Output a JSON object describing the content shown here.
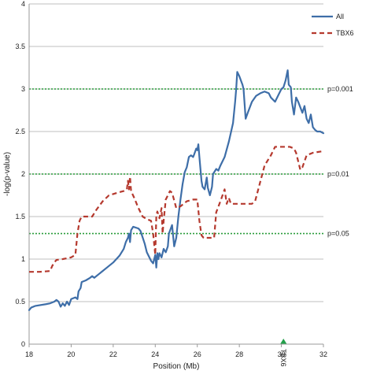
{
  "chart_data": {
    "type": "line",
    "xlabel": "Position (Mb)",
    "ylabel": "-log(p-value)",
    "xlim": [
      18,
      32
    ],
    "ylim": [
      0,
      4
    ],
    "xticks": [
      "18",
      "20",
      "22",
      "24",
      "26",
      "28",
      "30",
      "32"
    ],
    "yticks": [
      "0",
      "0.5",
      "1",
      "1.5",
      "2",
      "2.5",
      "3",
      "3.5",
      "4"
    ],
    "grid": true,
    "legend": "top-right",
    "colors": {
      "all": "#3e6ea8",
      "tbx6": "#b5392e",
      "threshold": "#2a9d3b",
      "marker": "#22a04a",
      "grid": "#bfbfbf"
    },
    "series": [
      {
        "name": "All",
        "style": "solid",
        "points": [
          [
            18.0,
            0.4
          ],
          [
            18.1,
            0.43
          ],
          [
            18.3,
            0.45
          ],
          [
            18.8,
            0.47
          ],
          [
            19.0,
            0.48
          ],
          [
            19.2,
            0.5
          ],
          [
            19.3,
            0.52
          ],
          [
            19.4,
            0.5
          ],
          [
            19.5,
            0.44
          ],
          [
            19.6,
            0.48
          ],
          [
            19.7,
            0.45
          ],
          [
            19.8,
            0.5
          ],
          [
            19.9,
            0.46
          ],
          [
            20.0,
            0.53
          ],
          [
            20.2,
            0.55
          ],
          [
            20.3,
            0.53
          ],
          [
            20.35,
            0.62
          ],
          [
            20.45,
            0.66
          ],
          [
            20.5,
            0.73
          ],
          [
            20.7,
            0.75
          ],
          [
            20.9,
            0.78
          ],
          [
            21.0,
            0.8
          ],
          [
            21.1,
            0.78
          ],
          [
            21.3,
            0.82
          ],
          [
            21.5,
            0.86
          ],
          [
            21.7,
            0.9
          ],
          [
            22.0,
            0.96
          ],
          [
            22.3,
            1.04
          ],
          [
            22.5,
            1.12
          ],
          [
            22.6,
            1.2
          ],
          [
            22.7,
            1.25
          ],
          [
            22.75,
            1.3
          ],
          [
            22.8,
            1.2
          ],
          [
            22.85,
            1.34
          ],
          [
            22.95,
            1.38
          ],
          [
            23.2,
            1.36
          ],
          [
            23.3,
            1.33
          ],
          [
            23.5,
            1.18
          ],
          [
            23.6,
            1.08
          ],
          [
            23.8,
            0.98
          ],
          [
            23.9,
            0.95
          ],
          [
            24.0,
            1.05
          ],
          [
            24.05,
            0.9
          ],
          [
            24.1,
            1.07
          ],
          [
            24.15,
            1.0
          ],
          [
            24.2,
            1.07
          ],
          [
            24.3,
            1.02
          ],
          [
            24.4,
            1.12
          ],
          [
            24.5,
            1.08
          ],
          [
            24.6,
            1.15
          ],
          [
            24.65,
            1.3
          ],
          [
            24.8,
            1.4
          ],
          [
            24.9,
            1.15
          ],
          [
            25.0,
            1.25
          ],
          [
            25.1,
            1.5
          ],
          [
            25.2,
            1.7
          ],
          [
            25.3,
            1.88
          ],
          [
            25.35,
            1.95
          ],
          [
            25.4,
            2.02
          ],
          [
            25.5,
            2.08
          ],
          [
            25.6,
            2.2
          ],
          [
            25.7,
            2.22
          ],
          [
            25.8,
            2.2
          ],
          [
            25.85,
            2.23
          ],
          [
            25.95,
            2.3
          ],
          [
            26.0,
            2.28
          ],
          [
            26.05,
            2.35
          ],
          [
            26.1,
            2.2
          ],
          [
            26.2,
            1.92
          ],
          [
            26.25,
            1.85
          ],
          [
            26.35,
            1.82
          ],
          [
            26.45,
            1.96
          ],
          [
            26.5,
            1.84
          ],
          [
            26.6,
            1.75
          ],
          [
            26.7,
            1.85
          ],
          [
            26.75,
            2.0
          ],
          [
            26.9,
            2.06
          ],
          [
            27.0,
            2.04
          ],
          [
            27.1,
            2.1
          ],
          [
            27.3,
            2.2
          ],
          [
            27.5,
            2.38
          ],
          [
            27.7,
            2.6
          ],
          [
            27.8,
            2.85
          ],
          [
            27.85,
            3.0
          ],
          [
            27.9,
            3.2
          ],
          [
            28.0,
            3.15
          ],
          [
            28.15,
            3.05
          ],
          [
            28.2,
            3.0
          ],
          [
            28.3,
            2.65
          ],
          [
            28.4,
            2.72
          ],
          [
            28.6,
            2.85
          ],
          [
            28.8,
            2.92
          ],
          [
            29.0,
            2.95
          ],
          [
            29.2,
            2.97
          ],
          [
            29.4,
            2.95
          ],
          [
            29.5,
            2.9
          ],
          [
            29.7,
            2.85
          ],
          [
            29.9,
            2.95
          ],
          [
            30.0,
            3.0
          ],
          [
            30.1,
            3.02
          ],
          [
            30.2,
            3.1
          ],
          [
            30.3,
            3.22
          ],
          [
            30.35,
            3.05
          ],
          [
            30.45,
            3.02
          ],
          [
            30.5,
            2.85
          ],
          [
            30.6,
            2.7
          ],
          [
            30.7,
            2.9
          ],
          [
            30.8,
            2.85
          ],
          [
            31.0,
            2.72
          ],
          [
            31.1,
            2.8
          ],
          [
            31.2,
            2.65
          ],
          [
            31.3,
            2.6
          ],
          [
            31.4,
            2.7
          ],
          [
            31.5,
            2.55
          ],
          [
            31.6,
            2.52
          ],
          [
            31.7,
            2.5
          ],
          [
            31.85,
            2.5
          ],
          [
            32.0,
            2.48
          ]
        ]
      },
      {
        "name": "TBX6",
        "style": "dashed",
        "points": [
          [
            18.0,
            0.85
          ],
          [
            18.5,
            0.85
          ],
          [
            19.0,
            0.86
          ],
          [
            19.1,
            0.92
          ],
          [
            19.2,
            0.96
          ],
          [
            19.3,
            0.99
          ],
          [
            19.6,
            1.0
          ],
          [
            20.0,
            1.02
          ],
          [
            20.2,
            1.05
          ],
          [
            20.3,
            1.3
          ],
          [
            20.4,
            1.45
          ],
          [
            20.5,
            1.5
          ],
          [
            21.0,
            1.5
          ],
          [
            21.2,
            1.58
          ],
          [
            21.5,
            1.68
          ],
          [
            21.8,
            1.75
          ],
          [
            22.2,
            1.78
          ],
          [
            22.5,
            1.8
          ],
          [
            22.65,
            1.82
          ],
          [
            22.7,
            1.92
          ],
          [
            22.75,
            1.82
          ],
          [
            22.8,
            1.97
          ],
          [
            22.85,
            1.8
          ],
          [
            23.0,
            1.72
          ],
          [
            23.2,
            1.6
          ],
          [
            23.4,
            1.5
          ],
          [
            23.6,
            1.47
          ],
          [
            23.8,
            1.45
          ],
          [
            23.9,
            1.3
          ],
          [
            24.0,
            1.05
          ],
          [
            24.05,
            1.5
          ],
          [
            24.1,
            1.56
          ],
          [
            24.2,
            1.48
          ],
          [
            24.3,
            1.6
          ],
          [
            24.35,
            1.3
          ],
          [
            24.4,
            1.45
          ],
          [
            24.5,
            1.7
          ],
          [
            24.7,
            1.8
          ],
          [
            24.8,
            1.78
          ],
          [
            25.0,
            1.6
          ],
          [
            25.2,
            1.62
          ],
          [
            25.5,
            1.68
          ],
          [
            25.8,
            1.7
          ],
          [
            26.0,
            1.7
          ],
          [
            26.1,
            1.45
          ],
          [
            26.2,
            1.28
          ],
          [
            26.3,
            1.25
          ],
          [
            26.6,
            1.25
          ],
          [
            26.8,
            1.25
          ],
          [
            26.9,
            1.55
          ],
          [
            27.1,
            1.68
          ],
          [
            27.3,
            1.82
          ],
          [
            27.4,
            1.65
          ],
          [
            27.5,
            1.72
          ],
          [
            27.6,
            1.65
          ],
          [
            28.0,
            1.65
          ],
          [
            28.6,
            1.65
          ],
          [
            28.75,
            1.68
          ],
          [
            28.9,
            1.82
          ],
          [
            29.2,
            2.1
          ],
          [
            29.5,
            2.22
          ],
          [
            29.7,
            2.32
          ],
          [
            30.0,
            2.32
          ],
          [
            30.4,
            2.32
          ],
          [
            30.6,
            2.3
          ],
          [
            30.7,
            2.25
          ],
          [
            30.8,
            2.15
          ],
          [
            30.9,
            2.05
          ],
          [
            31.0,
            2.08
          ],
          [
            31.1,
            2.15
          ],
          [
            31.2,
            2.22
          ],
          [
            31.5,
            2.25
          ],
          [
            32.0,
            2.27
          ]
        ]
      }
    ],
    "thresholds": [
      {
        "y": 3.0,
        "label": "p=0.001"
      },
      {
        "y": 2.0,
        "label": "p=0.01"
      },
      {
        "y": 1.3,
        "label": "p=0.05"
      }
    ],
    "marker": {
      "x": 30.1,
      "label": "TBX6"
    }
  }
}
